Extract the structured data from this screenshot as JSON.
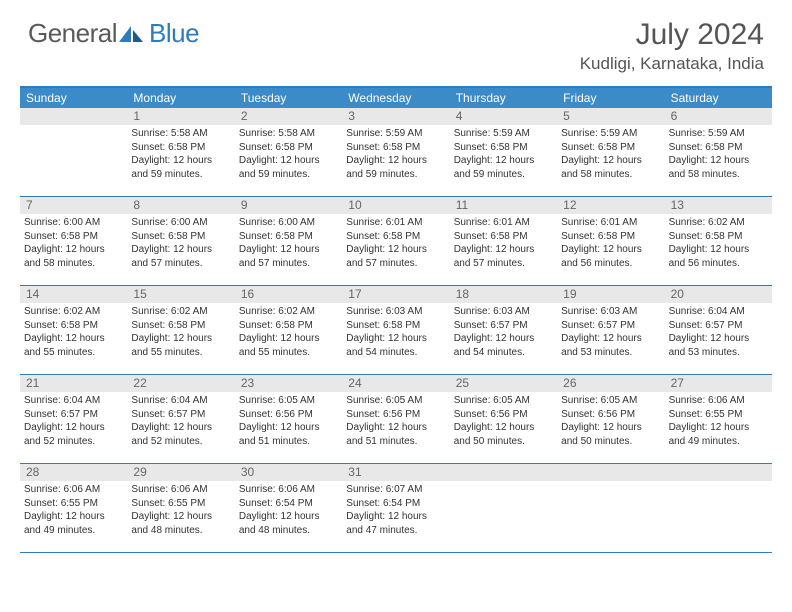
{
  "brand": {
    "part1": "General",
    "part2": "Blue"
  },
  "title": "July 2024",
  "location": "Kudligi, Karnataka, India",
  "colors": {
    "accent": "#2f7bbf",
    "header_bg": "#3b8bc9",
    "daynum_bg": "#e8e8e8",
    "text": "#333333",
    "title_text": "#555555"
  },
  "weekdays": [
    "Sunday",
    "Monday",
    "Tuesday",
    "Wednesday",
    "Thursday",
    "Friday",
    "Saturday"
  ],
  "weeks": [
    [
      {
        "n": "",
        "lines": []
      },
      {
        "n": "1",
        "lines": [
          "Sunrise: 5:58 AM",
          "Sunset: 6:58 PM",
          "Daylight: 12 hours",
          "and 59 minutes."
        ]
      },
      {
        "n": "2",
        "lines": [
          "Sunrise: 5:58 AM",
          "Sunset: 6:58 PM",
          "Daylight: 12 hours",
          "and 59 minutes."
        ]
      },
      {
        "n": "3",
        "lines": [
          "Sunrise: 5:59 AM",
          "Sunset: 6:58 PM",
          "Daylight: 12 hours",
          "and 59 minutes."
        ]
      },
      {
        "n": "4",
        "lines": [
          "Sunrise: 5:59 AM",
          "Sunset: 6:58 PM",
          "Daylight: 12 hours",
          "and 59 minutes."
        ]
      },
      {
        "n": "5",
        "lines": [
          "Sunrise: 5:59 AM",
          "Sunset: 6:58 PM",
          "Daylight: 12 hours",
          "and 58 minutes."
        ]
      },
      {
        "n": "6",
        "lines": [
          "Sunrise: 5:59 AM",
          "Sunset: 6:58 PM",
          "Daylight: 12 hours",
          "and 58 minutes."
        ]
      }
    ],
    [
      {
        "n": "7",
        "lines": [
          "Sunrise: 6:00 AM",
          "Sunset: 6:58 PM",
          "Daylight: 12 hours",
          "and 58 minutes."
        ]
      },
      {
        "n": "8",
        "lines": [
          "Sunrise: 6:00 AM",
          "Sunset: 6:58 PM",
          "Daylight: 12 hours",
          "and 57 minutes."
        ]
      },
      {
        "n": "9",
        "lines": [
          "Sunrise: 6:00 AM",
          "Sunset: 6:58 PM",
          "Daylight: 12 hours",
          "and 57 minutes."
        ]
      },
      {
        "n": "10",
        "lines": [
          "Sunrise: 6:01 AM",
          "Sunset: 6:58 PM",
          "Daylight: 12 hours",
          "and 57 minutes."
        ]
      },
      {
        "n": "11",
        "lines": [
          "Sunrise: 6:01 AM",
          "Sunset: 6:58 PM",
          "Daylight: 12 hours",
          "and 57 minutes."
        ]
      },
      {
        "n": "12",
        "lines": [
          "Sunrise: 6:01 AM",
          "Sunset: 6:58 PM",
          "Daylight: 12 hours",
          "and 56 minutes."
        ]
      },
      {
        "n": "13",
        "lines": [
          "Sunrise: 6:02 AM",
          "Sunset: 6:58 PM",
          "Daylight: 12 hours",
          "and 56 minutes."
        ]
      }
    ],
    [
      {
        "n": "14",
        "lines": [
          "Sunrise: 6:02 AM",
          "Sunset: 6:58 PM",
          "Daylight: 12 hours",
          "and 55 minutes."
        ]
      },
      {
        "n": "15",
        "lines": [
          "Sunrise: 6:02 AM",
          "Sunset: 6:58 PM",
          "Daylight: 12 hours",
          "and 55 minutes."
        ]
      },
      {
        "n": "16",
        "lines": [
          "Sunrise: 6:02 AM",
          "Sunset: 6:58 PM",
          "Daylight: 12 hours",
          "and 55 minutes."
        ]
      },
      {
        "n": "17",
        "lines": [
          "Sunrise: 6:03 AM",
          "Sunset: 6:58 PM",
          "Daylight: 12 hours",
          "and 54 minutes."
        ]
      },
      {
        "n": "18",
        "lines": [
          "Sunrise: 6:03 AM",
          "Sunset: 6:57 PM",
          "Daylight: 12 hours",
          "and 54 minutes."
        ]
      },
      {
        "n": "19",
        "lines": [
          "Sunrise: 6:03 AM",
          "Sunset: 6:57 PM",
          "Daylight: 12 hours",
          "and 53 minutes."
        ]
      },
      {
        "n": "20",
        "lines": [
          "Sunrise: 6:04 AM",
          "Sunset: 6:57 PM",
          "Daylight: 12 hours",
          "and 53 minutes."
        ]
      }
    ],
    [
      {
        "n": "21",
        "lines": [
          "Sunrise: 6:04 AM",
          "Sunset: 6:57 PM",
          "Daylight: 12 hours",
          "and 52 minutes."
        ]
      },
      {
        "n": "22",
        "lines": [
          "Sunrise: 6:04 AM",
          "Sunset: 6:57 PM",
          "Daylight: 12 hours",
          "and 52 minutes."
        ]
      },
      {
        "n": "23",
        "lines": [
          "Sunrise: 6:05 AM",
          "Sunset: 6:56 PM",
          "Daylight: 12 hours",
          "and 51 minutes."
        ]
      },
      {
        "n": "24",
        "lines": [
          "Sunrise: 6:05 AM",
          "Sunset: 6:56 PM",
          "Daylight: 12 hours",
          "and 51 minutes."
        ]
      },
      {
        "n": "25",
        "lines": [
          "Sunrise: 6:05 AM",
          "Sunset: 6:56 PM",
          "Daylight: 12 hours",
          "and 50 minutes."
        ]
      },
      {
        "n": "26",
        "lines": [
          "Sunrise: 6:05 AM",
          "Sunset: 6:56 PM",
          "Daylight: 12 hours",
          "and 50 minutes."
        ]
      },
      {
        "n": "27",
        "lines": [
          "Sunrise: 6:06 AM",
          "Sunset: 6:55 PM",
          "Daylight: 12 hours",
          "and 49 minutes."
        ]
      }
    ],
    [
      {
        "n": "28",
        "lines": [
          "Sunrise: 6:06 AM",
          "Sunset: 6:55 PM",
          "Daylight: 12 hours",
          "and 49 minutes."
        ]
      },
      {
        "n": "29",
        "lines": [
          "Sunrise: 6:06 AM",
          "Sunset: 6:55 PM",
          "Daylight: 12 hours",
          "and 48 minutes."
        ]
      },
      {
        "n": "30",
        "lines": [
          "Sunrise: 6:06 AM",
          "Sunset: 6:54 PM",
          "Daylight: 12 hours",
          "and 48 minutes."
        ]
      },
      {
        "n": "31",
        "lines": [
          "Sunrise: 6:07 AM",
          "Sunset: 6:54 PM",
          "Daylight: 12 hours",
          "and 47 minutes."
        ]
      },
      {
        "n": "",
        "lines": []
      },
      {
        "n": "",
        "lines": []
      },
      {
        "n": "",
        "lines": []
      }
    ]
  ]
}
